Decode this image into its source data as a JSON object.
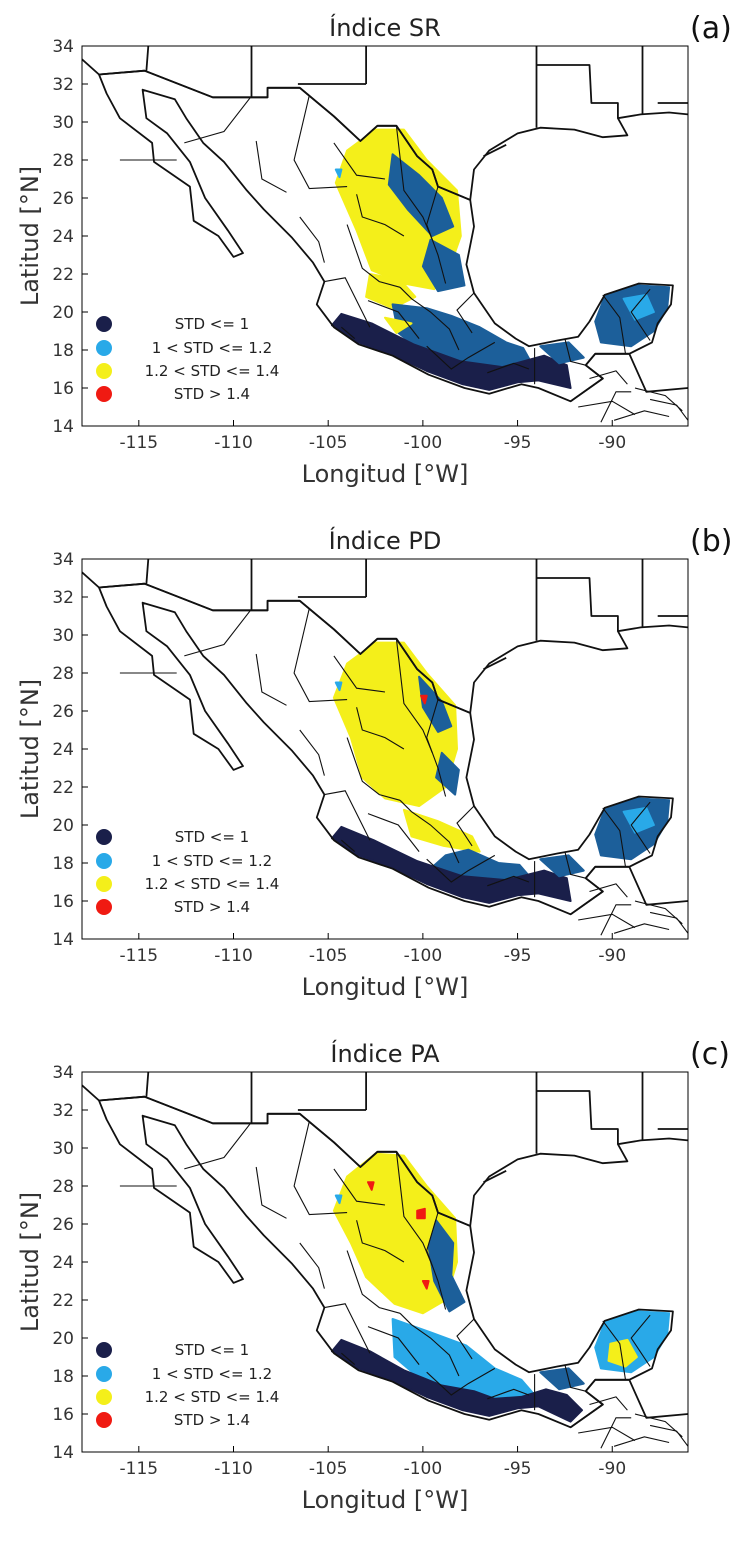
{
  "colors": {
    "std_le_1": "#1a1f4a",
    "std_1_1_2": "#29a9e8",
    "std_1_2_1_4": "#f4ef1a",
    "std_gt_1_4": "#f01a12",
    "mixed_blue": "#1c5f9a"
  },
  "axes": {
    "xlabel": "Longitud [°W]",
    "ylabel": "Latitud [°N]",
    "xticks": [
      "-115",
      "-110",
      "-105",
      "-100",
      "-95",
      "-90"
    ],
    "yticks": [
      "14",
      "16",
      "18",
      "20",
      "22",
      "24",
      "26",
      "28",
      "30",
      "32",
      "34"
    ],
    "x_range": [
      -118,
      -86
    ],
    "y_range": [
      14,
      34
    ]
  },
  "legend": [
    {
      "label": "STD <= 1",
      "color": "#1a1f4a"
    },
    {
      "label": "1 < STD <= 1.2",
      "color": "#29a9e8"
    },
    {
      "label": "1.2 < STD <= 1.4",
      "color": "#f4ef1a"
    },
    {
      "label": "STD > 1.4",
      "color": "#f01a12"
    }
  ],
  "panels": [
    {
      "title": "Índice SR",
      "label": "(a)"
    },
    {
      "title": "Índice PD",
      "label": "(b)"
    },
    {
      "title": "Índice PA",
      "label": "(c)"
    }
  ]
}
